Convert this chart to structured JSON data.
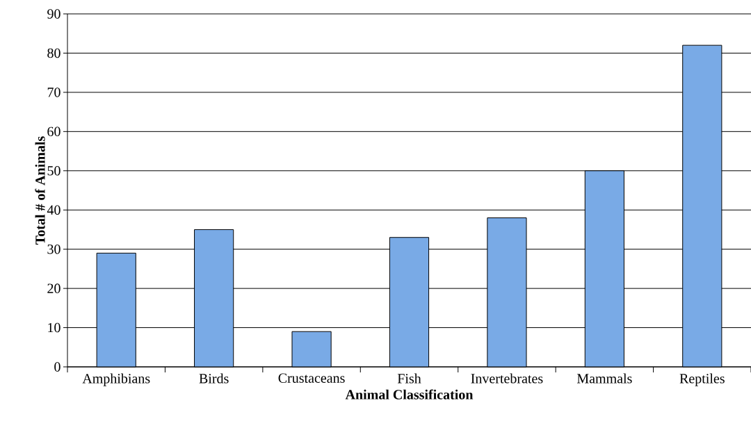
{
  "chart_data": {
    "type": "bar",
    "xlabel": "Animal Classification",
    "ylabel": "Total # of Animals",
    "categories": [
      "Amphibians",
      "Birds",
      "Crustaceans",
      "Fish",
      "Invertebrates",
      "Mammals",
      "Reptiles"
    ],
    "values": [
      29,
      35,
      9,
      33,
      38,
      50,
      82
    ],
    "color": "#79aae6",
    "ylim": [
      0,
      90
    ],
    "yticks": [
      0,
      10,
      20,
      30,
      40,
      50,
      60,
      70,
      80,
      90
    ],
    "grid": "y"
  }
}
